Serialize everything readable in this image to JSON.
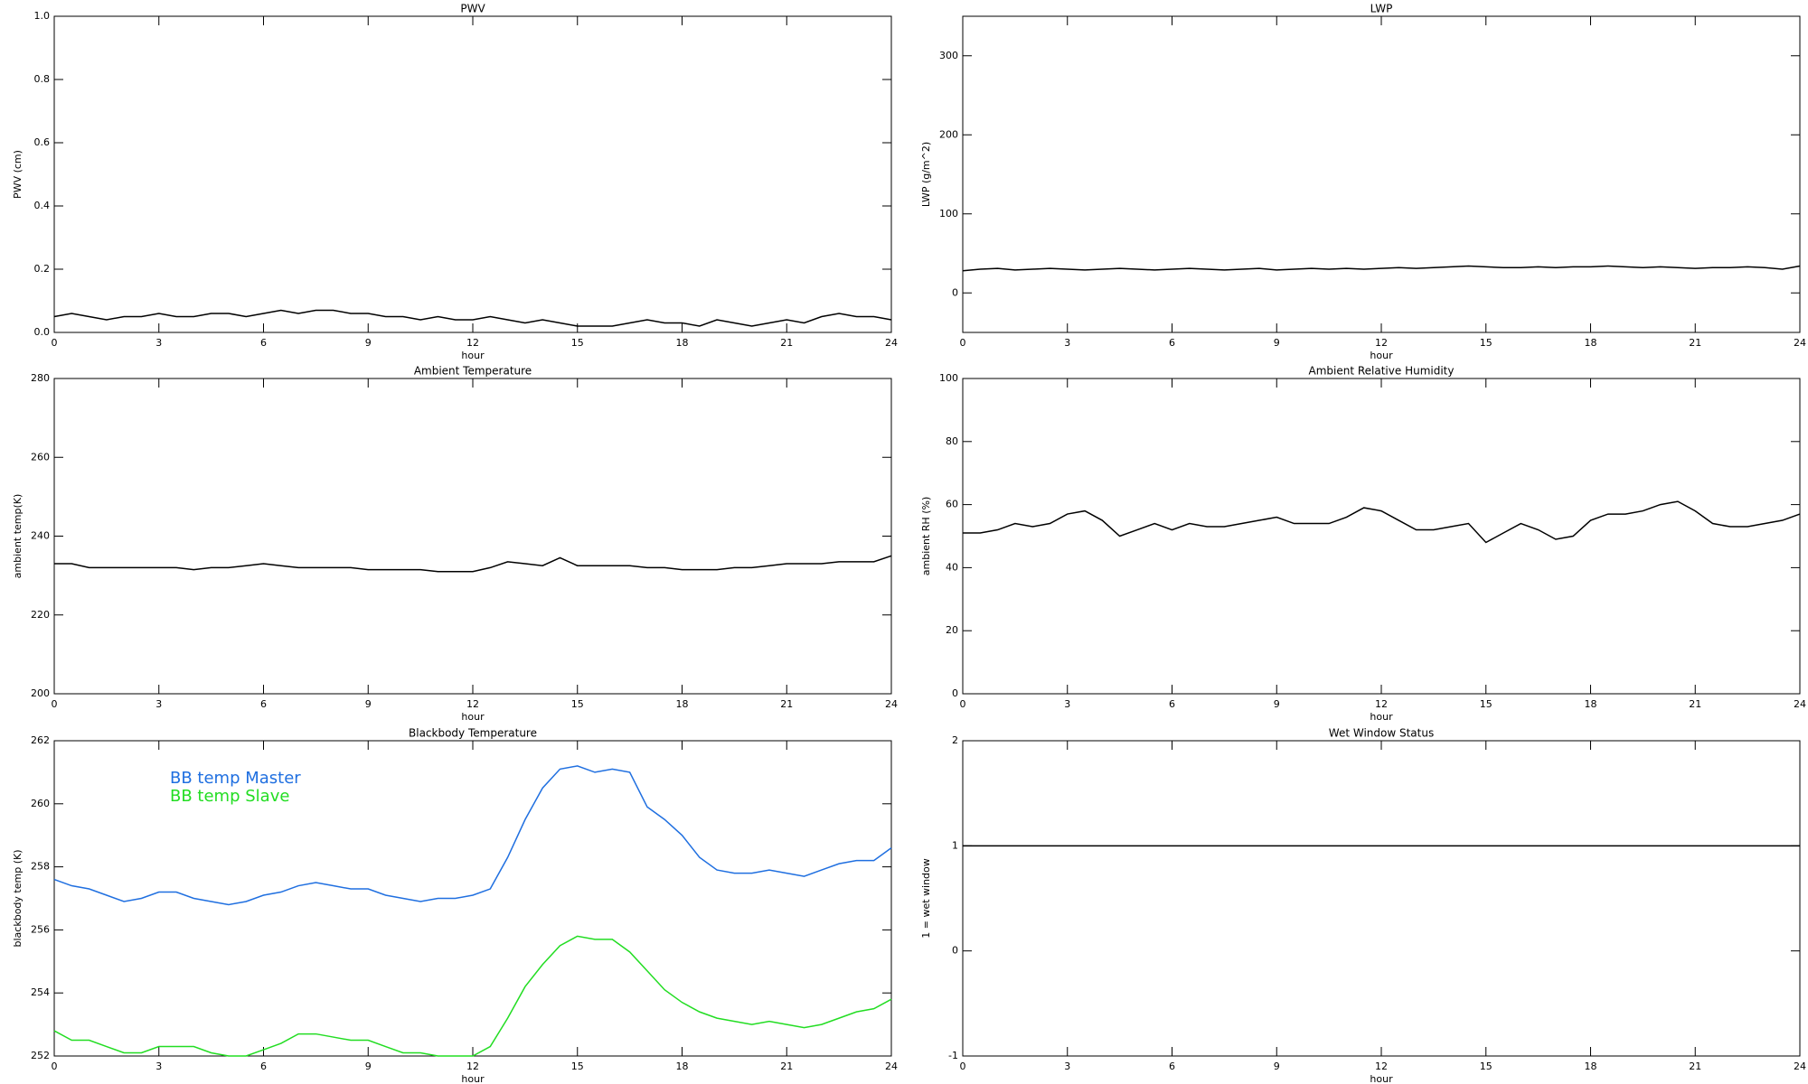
{
  "chart_data": [
    {
      "type": "line",
      "title": "PWV",
      "xlabel": "hour",
      "ylabel": "PWV (cm)",
      "x": [
        0,
        0.5,
        1,
        1.5,
        2,
        2.5,
        3,
        3.5,
        4,
        4.5,
        5,
        5.5,
        6,
        6.5,
        7,
        7.5,
        8,
        8.5,
        9,
        9.5,
        10,
        10.5,
        11,
        11.5,
        12,
        12.5,
        13,
        13.5,
        14,
        14.5,
        15,
        15.5,
        16,
        16.5,
        17,
        17.5,
        18,
        18.5,
        19,
        19.5,
        20,
        20.5,
        21,
        21.5,
        22,
        22.5,
        23,
        23.5,
        24
      ],
      "series": [
        {
          "name": "PWV",
          "color": "#000000",
          "values": [
            0.05,
            0.06,
            0.05,
            0.04,
            0.05,
            0.05,
            0.06,
            0.05,
            0.05,
            0.06,
            0.06,
            0.05,
            0.06,
            0.07,
            0.06,
            0.07,
            0.07,
            0.06,
            0.06,
            0.05,
            0.05,
            0.04,
            0.05,
            0.04,
            0.04,
            0.05,
            0.04,
            0.03,
            0.04,
            0.03,
            0.02,
            0.02,
            0.02,
            0.03,
            0.04,
            0.03,
            0.03,
            0.02,
            0.04,
            0.03,
            0.02,
            0.03,
            0.04,
            0.03,
            0.05,
            0.06,
            0.05,
            0.05,
            0.04
          ]
        }
      ],
      "xlim": [
        0,
        24
      ],
      "xticks": [
        0,
        3,
        6,
        9,
        12,
        15,
        18,
        21,
        24
      ],
      "ylim": [
        0,
        1
      ],
      "yticks": [
        {
          "value": 0,
          "label": "0.0"
        },
        0.2,
        0.4,
        0.6,
        0.8,
        {
          "value": 1,
          "label": "1.0"
        }
      ]
    },
    {
      "type": "line",
      "title": "LWP",
      "xlabel": "hour",
      "ylabel": "LWP (g/m^2)",
      "x": [
        0,
        0.5,
        1,
        1.5,
        2,
        2.5,
        3,
        3.5,
        4,
        4.5,
        5,
        5.5,
        6,
        6.5,
        7,
        7.5,
        8,
        8.5,
        9,
        9.5,
        10,
        10.5,
        11,
        11.5,
        12,
        12.5,
        13,
        13.5,
        14,
        14.5,
        15,
        15.5,
        16,
        16.5,
        17,
        17.5,
        18,
        18.5,
        19,
        19.5,
        20,
        20.5,
        21,
        21.5,
        22,
        22.5,
        23,
        23.5,
        24
      ],
      "series": [
        {
          "name": "LWP",
          "color": "#000000",
          "values": [
            28,
            30,
            31,
            29,
            30,
            31,
            30,
            29,
            30,
            31,
            30,
            29,
            30,
            31,
            30,
            29,
            30,
            31,
            29,
            30,
            31,
            30,
            31,
            30,
            31,
            32,
            31,
            32,
            33,
            34,
            33,
            32,
            32,
            33,
            32,
            33,
            33,
            34,
            33,
            32,
            33,
            32,
            31,
            32,
            32,
            33,
            32,
            30,
            34
          ]
        }
      ],
      "xlim": [
        0,
        24
      ],
      "xticks": [
        0,
        3,
        6,
        9,
        12,
        15,
        18,
        21,
        24
      ],
      "ylim": [
        -50,
        350
      ],
      "yticks": [
        0,
        100,
        200,
        300
      ]
    },
    {
      "type": "line",
      "title": "Ambient Temperature",
      "xlabel": "hour",
      "ylabel": "ambient temp(K)",
      "x": [
        0,
        0.5,
        1,
        1.5,
        2,
        2.5,
        3,
        3.5,
        4,
        4.5,
        5,
        5.5,
        6,
        6.5,
        7,
        7.5,
        8,
        8.5,
        9,
        9.5,
        10,
        10.5,
        11,
        11.5,
        12,
        12.5,
        13,
        13.5,
        14,
        14.5,
        15,
        15.5,
        16,
        16.5,
        17,
        17.5,
        18,
        18.5,
        19,
        19.5,
        20,
        20.5,
        21,
        21.5,
        22,
        22.5,
        23,
        23.5,
        24
      ],
      "series": [
        {
          "name": "ambient temp",
          "color": "#000000",
          "values": [
            233,
            233,
            232,
            232,
            232,
            232,
            232,
            232,
            231.5,
            232,
            232,
            232.5,
            233,
            232.5,
            232,
            232,
            232,
            232,
            231.5,
            231.5,
            231.5,
            231.5,
            231,
            231,
            231,
            232,
            233.5,
            233,
            232.5,
            234.5,
            232.5,
            232.5,
            232.5,
            232.5,
            232,
            232,
            231.5,
            231.5,
            231.5,
            232,
            232,
            232.5,
            233,
            233,
            233,
            233.5,
            233.5,
            233.5,
            235
          ]
        }
      ],
      "xlim": [
        0,
        24
      ],
      "xticks": [
        0,
        3,
        6,
        9,
        12,
        15,
        18,
        21,
        24
      ],
      "ylim": [
        200,
        280
      ],
      "yticks": [
        200,
        220,
        240,
        260,
        280
      ]
    },
    {
      "type": "line",
      "title": "Ambient Relative Humidity",
      "xlabel": "hour",
      "ylabel": "ambient RH (%)",
      "x": [
        0,
        0.5,
        1,
        1.5,
        2,
        2.5,
        3,
        3.5,
        4,
        4.5,
        5,
        5.5,
        6,
        6.5,
        7,
        7.5,
        8,
        8.5,
        9,
        9.5,
        10,
        10.5,
        11,
        11.5,
        12,
        12.5,
        13,
        13.5,
        14,
        14.5,
        15,
        15.5,
        16,
        16.5,
        17,
        17.5,
        18,
        18.5,
        19,
        19.5,
        20,
        20.5,
        21,
        21.5,
        22,
        22.5,
        23,
        23.5,
        24
      ],
      "series": [
        {
          "name": "ambient RH",
          "color": "#000000",
          "values": [
            51,
            51,
            52,
            54,
            53,
            54,
            57,
            58,
            55,
            50,
            52,
            54,
            52,
            54,
            53,
            53,
            54,
            55,
            56,
            54,
            54,
            54,
            56,
            59,
            58,
            55,
            52,
            52,
            53,
            54,
            48,
            51,
            54,
            52,
            49,
            50,
            55,
            57,
            57,
            58,
            60,
            61,
            58,
            54,
            53,
            53,
            54,
            55,
            57
          ]
        }
      ],
      "xlim": [
        0,
        24
      ],
      "xticks": [
        0,
        3,
        6,
        9,
        12,
        15,
        18,
        21,
        24
      ],
      "ylim": [
        0,
        100
      ],
      "yticks": [
        0,
        20,
        40,
        60,
        80,
        100
      ]
    },
    {
      "type": "line",
      "title": "Blackbody Temperature",
      "xlabel": "hour",
      "ylabel": "blackbody temp (K)",
      "legend": "upper left",
      "x": [
        0,
        0.5,
        1,
        1.5,
        2,
        2.5,
        3,
        3.5,
        4,
        4.5,
        5,
        5.5,
        6,
        6.5,
        7,
        7.5,
        8,
        8.5,
        9,
        9.5,
        10,
        10.5,
        11,
        11.5,
        12,
        12.5,
        13,
        13.5,
        14,
        14.5,
        15,
        15.5,
        16,
        16.5,
        17,
        17.5,
        18,
        18.5,
        19,
        19.5,
        20,
        20.5,
        21,
        21.5,
        22,
        22.5,
        23,
        23.5,
        24
      ],
      "series": [
        {
          "name": "BB temp Master",
          "color": "#1f6fe0",
          "values": [
            257.6,
            257.4,
            257.3,
            257.1,
            256.9,
            257.0,
            257.2,
            257.2,
            257.0,
            256.9,
            256.8,
            256.9,
            257.1,
            257.2,
            257.4,
            257.5,
            257.4,
            257.3,
            257.3,
            257.1,
            257.0,
            256.9,
            257.0,
            257.0,
            257.1,
            257.3,
            258.3,
            259.5,
            260.5,
            261.1,
            261.2,
            261.0,
            261.1,
            261.0,
            259.9,
            259.5,
            259.0,
            258.3,
            257.9,
            257.8,
            257.8,
            257.9,
            257.8,
            257.7,
            257.9,
            258.1,
            258.2,
            258.2,
            258.6
          ]
        },
        {
          "name": "BB temp Slave",
          "color": "#22dd22",
          "values": [
            252.8,
            252.5,
            252.5,
            252.3,
            252.1,
            252.1,
            252.3,
            252.3,
            252.3,
            252.1,
            252.0,
            252.0,
            252.2,
            252.4,
            252.7,
            252.7,
            252.6,
            252.5,
            252.5,
            252.3,
            252.1,
            252.1,
            252.0,
            252.0,
            252.0,
            252.3,
            253.2,
            254.2,
            254.9,
            255.5,
            255.8,
            255.7,
            255.7,
            255.3,
            254.7,
            254.1,
            253.7,
            253.4,
            253.2,
            253.1,
            253.0,
            253.1,
            253.0,
            252.9,
            253.0,
            253.2,
            253.4,
            253.5,
            253.8
          ]
        }
      ],
      "xlim": [
        0,
        24
      ],
      "xticks": [
        0,
        3,
        6,
        9,
        12,
        15,
        18,
        21,
        24
      ],
      "ylim": [
        252,
        262
      ],
      "yticks": [
        252,
        254,
        256,
        258,
        260,
        262
      ]
    },
    {
      "type": "line",
      "title": "Wet Window Status",
      "xlabel": "hour",
      "ylabel": "1 = wet window",
      "x": [
        0,
        24
      ],
      "series": [
        {
          "name": "wet window",
          "color": "#000000",
          "values": [
            1,
            1
          ]
        }
      ],
      "xlim": [
        0,
        24
      ],
      "xticks": [
        0,
        3,
        6,
        9,
        12,
        15,
        18,
        21,
        24
      ],
      "ylim": [
        -1,
        2
      ],
      "yticks": [
        -1,
        0,
        1,
        2
      ]
    }
  ]
}
